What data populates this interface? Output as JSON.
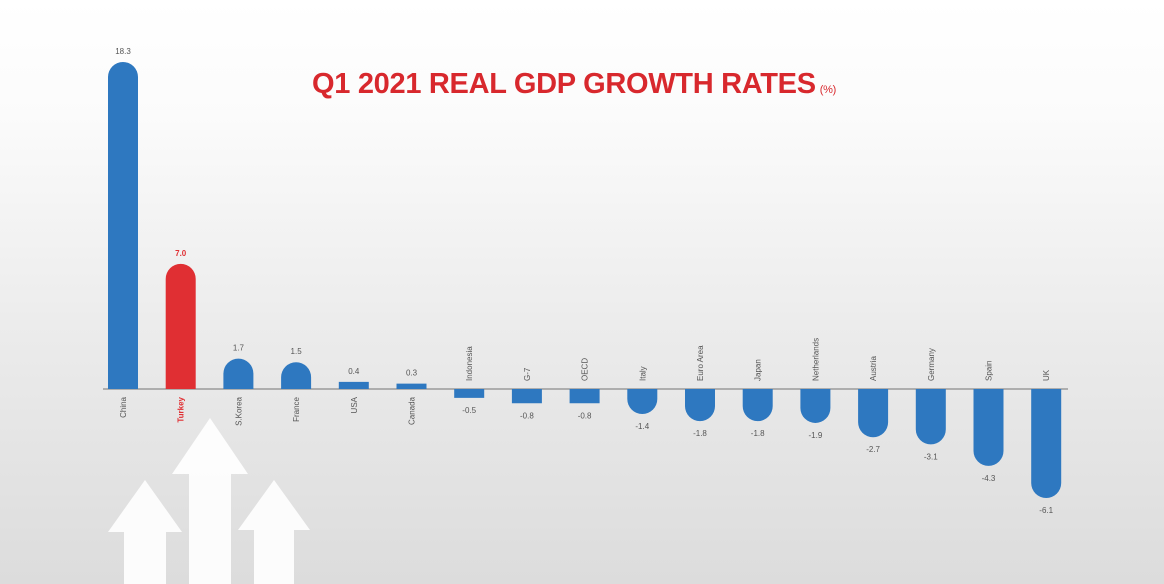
{
  "chart_data": {
    "type": "bar",
    "title": "Q1 2021 REAL GDP GROWTH RATES",
    "unit": "(%)",
    "categories": [
      "China",
      "Turkey",
      "S.Korea",
      "France",
      "USA",
      "Canada",
      "Indonesia",
      "G-7",
      "OECD",
      "Italy",
      "Euro Area",
      "Japan",
      "Netherlands",
      "Austria",
      "Germany",
      "Spain",
      "UK"
    ],
    "values": [
      18.3,
      7.0,
      1.7,
      1.5,
      0.4,
      0.3,
      -0.5,
      -0.8,
      -0.8,
      -1.4,
      -1.8,
      -1.8,
      -1.9,
      -2.7,
      -3.1,
      -4.3,
      -6.1
    ],
    "value_labels": [
      "18.3",
      "7.0",
      "1.7",
      "1.5",
      "0.4",
      "0.3",
      "-0.5",
      "-0.8",
      "-0.8",
      "-1.4",
      "-1.8",
      "-1.8",
      "-1.9",
      "-2.7",
      "-3.1",
      "-4.3",
      "-6.1"
    ],
    "highlight": "Turkey",
    "colors": {
      "default": "#2e78c0",
      "highlight": "#e02f33",
      "title": "#d8282d",
      "axis": "#9a9a9a"
    },
    "grid": false,
    "legend": "none"
  }
}
